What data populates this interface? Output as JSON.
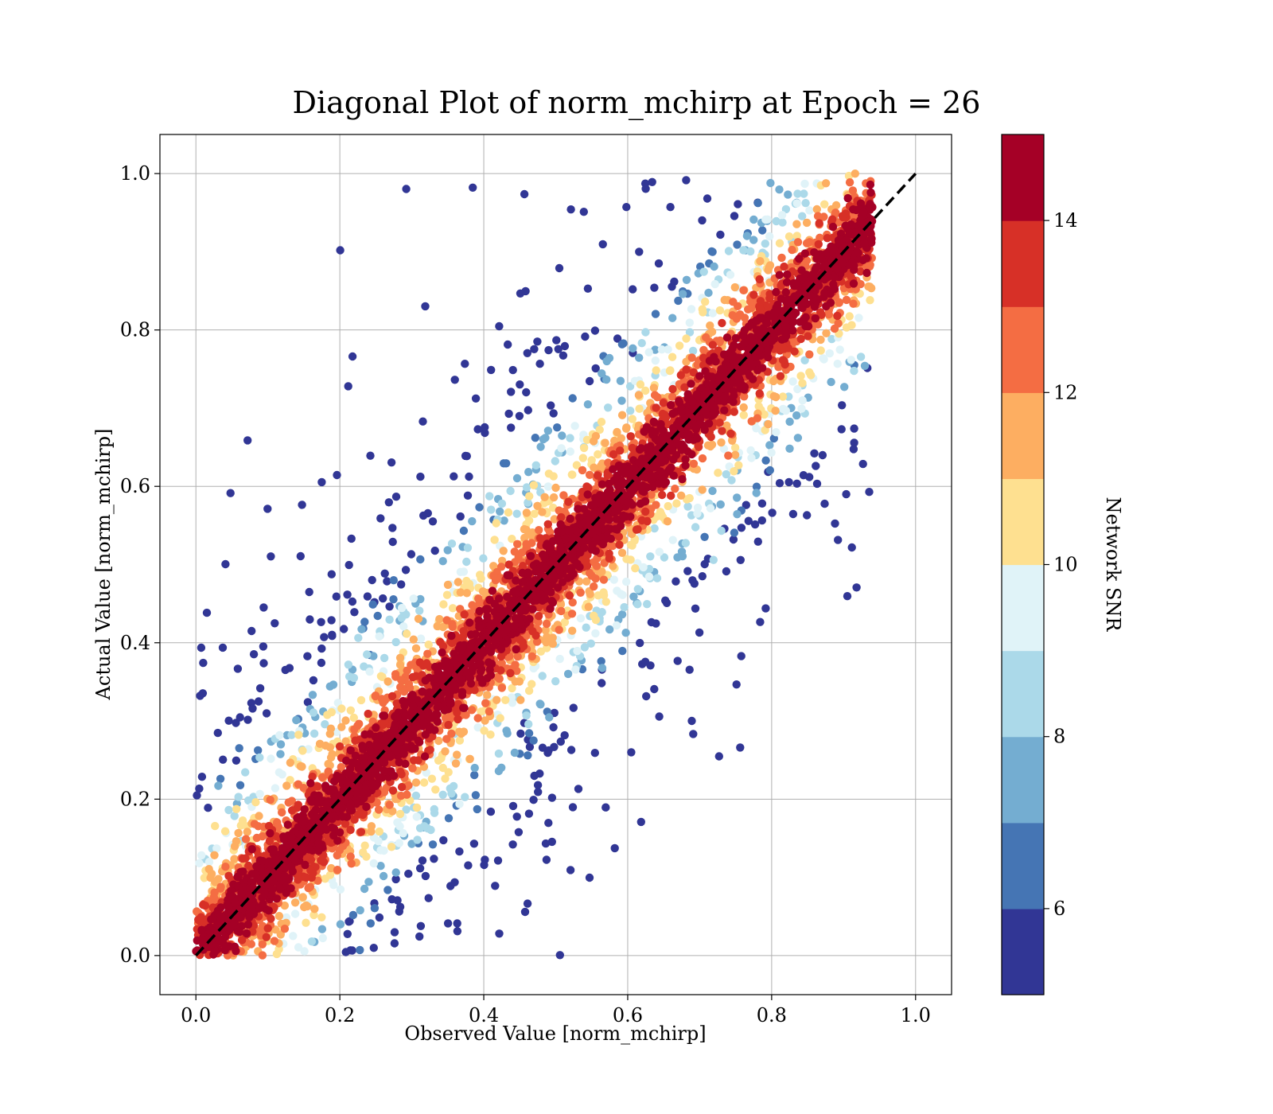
{
  "chart_data": {
    "type": "scatter",
    "title": "Diagonal Plot of norm_mchirp at Epoch = 26",
    "xlabel": "Observed Value [norm_mchirp]",
    "ylabel": "Actual Value [norm_mchirp]",
    "xlim": [
      -0.05,
      1.05
    ],
    "ylim": [
      -0.05,
      1.05
    ],
    "x_ticks": [
      "0.0",
      "0.2",
      "0.4",
      "0.6",
      "0.8",
      "1.0"
    ],
    "y_ticks": [
      "0.0",
      "0.2",
      "0.4",
      "0.6",
      "0.8",
      "1.0"
    ],
    "grid": true,
    "reference_line": {
      "x": [
        0.0,
        1.0
      ],
      "y": [
        0.0,
        1.0
      ],
      "style": "dashed",
      "color": "#000000"
    },
    "observed_range": [
      0.0,
      0.94
    ],
    "actual_range": [
      0.0,
      1.0
    ],
    "color_metric": "Network SNR",
    "colorbar": {
      "label": "Network SNR",
      "range": [
        5,
        15
      ],
      "ticks": [
        "6",
        "8",
        "10",
        "12",
        "14"
      ],
      "tick_values": [
        6,
        8,
        10,
        12,
        14
      ],
      "levels": 10,
      "colors": [
        "#313695",
        "#4575b4",
        "#74add1",
        "#abd9e9",
        "#e0f3f8",
        "#fee090",
        "#fdae61",
        "#f46d43",
        "#d73027",
        "#a50026"
      ]
    },
    "scatter_description": "dense band of high-SNR points along y = x; lower-SNR points scattered away from the diagonal"
  }
}
